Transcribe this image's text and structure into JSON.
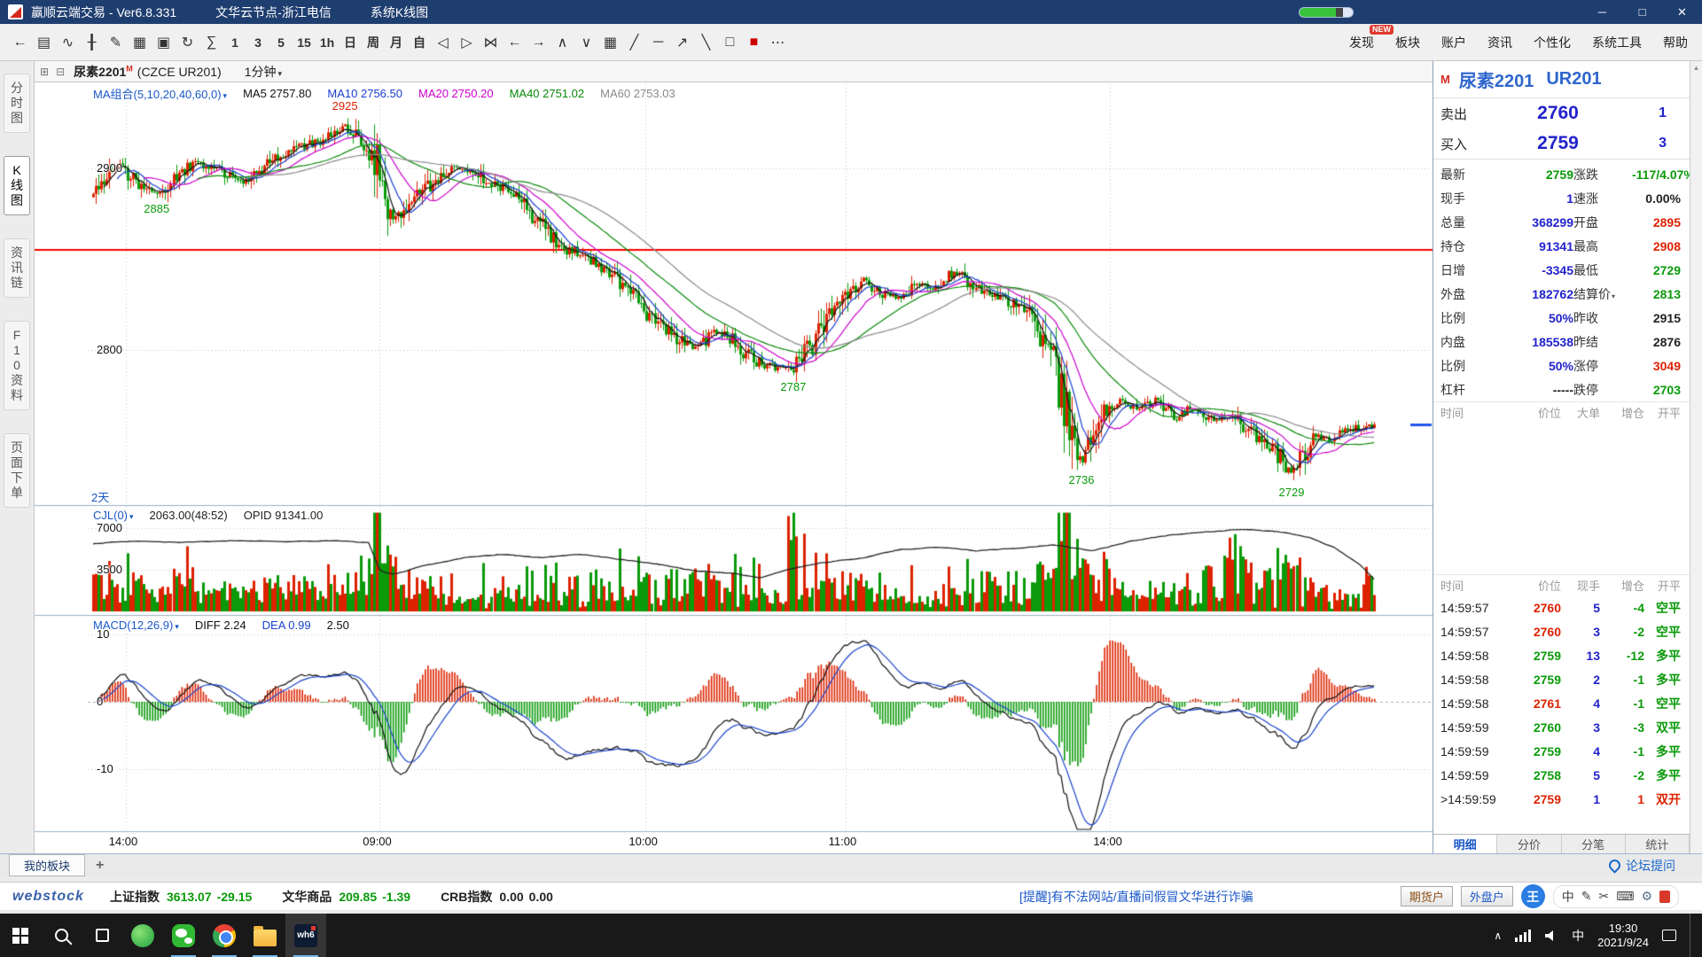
{
  "colors": {
    "up": "#dd2200",
    "down": "#0a9a0a",
    "blue": "#2222cc",
    "black": "#222222",
    "accent": "#2f66cc"
  },
  "ui": {
    "caret": "▾",
    "up_arrow": "▴"
  },
  "titlebar": {
    "app_title": "赢顺云端交易 - Ver6.8.331",
    "node": "文华云节点-浙江电信",
    "window_name": "系统K线图",
    "controls": [
      {
        "name": "minimize-button",
        "glyph": "─"
      },
      {
        "name": "maximize-button",
        "glyph": "□"
      },
      {
        "name": "close-button",
        "glyph": "✕"
      }
    ]
  },
  "toolbar": {
    "left_icons": [
      {
        "name": "back-icon",
        "glyph": "←"
      },
      {
        "name": "report-icon",
        "glyph": "▤"
      },
      {
        "name": "time-chart-icon",
        "glyph": "∿"
      },
      {
        "name": "kline-icon",
        "glyph": "╂"
      },
      {
        "name": "draw-icon",
        "glyph": "✎"
      },
      {
        "name": "chart-type-icon",
        "glyph": "▦"
      },
      {
        "name": "save-icon",
        "glyph": "▣"
      },
      {
        "name": "refresh-icon",
        "glyph": "↻"
      },
      {
        "name": "formula-icon",
        "glyph": "∑"
      }
    ],
    "periods": [
      {
        "name": "period-1min",
        "label": "1"
      },
      {
        "name": "period-3min",
        "label": "3"
      },
      {
        "name": "period-5min",
        "label": "5"
      },
      {
        "name": "period-15min",
        "label": "15"
      },
      {
        "name": "period-1hour",
        "label": "1h"
      },
      {
        "name": "period-day",
        "label": "日"
      },
      {
        "name": "period-week",
        "label": "周"
      },
      {
        "name": "period-month",
        "label": "月"
      },
      {
        "name": "period-custom",
        "label": "自"
      }
    ],
    "mid_icons": [
      {
        "name": "page-left-icon",
        "glyph": "◁"
      },
      {
        "name": "page-right-icon",
        "glyph": "▷"
      },
      {
        "name": "compress-icon",
        "glyph": "⋈"
      },
      {
        "name": "prev-icon",
        "glyph": "←"
      },
      {
        "name": "next-icon",
        "glyph": "→"
      },
      {
        "name": "zoom-in-icon",
        "glyph": "∧"
      },
      {
        "name": "zoom-out-icon",
        "glyph": "∨"
      },
      {
        "name": "grid-icon",
        "glyph": "▦"
      },
      {
        "name": "trendline-icon",
        "glyph": "╱"
      },
      {
        "name": "hline-icon",
        "glyph": "─"
      },
      {
        "name": "ray-icon",
        "glyph": "↗"
      },
      {
        "name": "segment-icon",
        "glyph": "╲"
      },
      {
        "name": "rect-icon",
        "glyph": "□"
      },
      {
        "name": "color-block-icon",
        "glyph": "■",
        "color": "#cc0000"
      },
      {
        "name": "more-icon",
        "glyph": "⋯"
      }
    ],
    "right_menu": [
      {
        "name": "nav-discover",
        "label": "发现",
        "badge": "NEW"
      },
      {
        "name": "nav-sectors",
        "label": "板块"
      },
      {
        "name": "nav-account",
        "label": "账户"
      },
      {
        "name": "nav-news",
        "label": "资讯"
      },
      {
        "name": "nav-personalize",
        "label": "个性化"
      },
      {
        "name": "nav-system-tools",
        "label": "系统工具"
      },
      {
        "name": "nav-help",
        "label": "帮助"
      }
    ]
  },
  "symbolbar": {
    "icons": [
      {
        "name": "layout-left-icon",
        "glyph": "⊞"
      },
      {
        "name": "layout-right-icon",
        "glyph": "⊟"
      }
    ],
    "symbol": "尿素2201",
    "symbol_sup": "M",
    "code": "(CZCE UR201)",
    "period": "1分钟"
  },
  "sidebar": {
    "items": [
      {
        "name": "tab-time-chart",
        "label": "分时图",
        "active": false
      },
      {
        "name": "tab-kline",
        "label": "K线图",
        "active": true
      },
      {
        "name": "tab-news-chain",
        "label": "资讯链",
        "active": false
      },
      {
        "name": "tab-f10",
        "label": "F10资料",
        "active": false
      },
      {
        "name": "tab-page-order",
        "label": "页面下单",
        "active": false
      }
    ]
  },
  "panes": {
    "kline": {
      "selector": "MA组合(5,10,20,40,60,0)",
      "ma_values": [
        {
          "text": "MA5 2757.80",
          "color": "#111111"
        },
        {
          "text": "MA10 2756.50",
          "color": "#1a3fd0"
        },
        {
          "text": "MA20 2750.20",
          "color": "#cc00cc"
        },
        {
          "text": "MA40 2751.02",
          "color": "#0a8a0a"
        },
        {
          "text": "MA60 2753.03",
          "color": "#8a8a8a"
        }
      ],
      "y_labels": [
        {
          "text": "2900",
          "price": 2900
        },
        {
          "text": "2800",
          "price": 2800
        }
      ],
      "range_label": "2天",
      "annotations": [
        {
          "text": "2925",
          "t": 0.197,
          "price": 2929,
          "dir": "above",
          "color": "#dd2200"
        },
        {
          "text": "2885",
          "t": 0.05,
          "price": 2883,
          "dir": "below",
          "color": "#0a9a0a"
        },
        {
          "text": "2787",
          "t": 0.547,
          "price": 2785,
          "dir": "below",
          "color": "#0a9a0a"
        },
        {
          "text": "2736",
          "t": 0.772,
          "price": 2734,
          "dir": "below",
          "color": "#0a9a0a"
        },
        {
          "text": "2729",
          "t": 0.936,
          "price": 2727,
          "dir": "below",
          "color": "#0a9a0a"
        }
      ]
    },
    "volume": {
      "selector": "CJL(0)",
      "value_text": "2063.00(48:52)",
      "opid_text": "OPID 91341.00",
      "y_labels": [
        {
          "text": "7000",
          "v": 7000
        },
        {
          "text": "3500",
          "v": 3500
        }
      ]
    },
    "macd": {
      "selector": "MACD(12,26,9)",
      "diff_text": "DIFF 2.24",
      "dea_text": "DEA 0.99",
      "macd_text": "2.50",
      "y_labels": [
        {
          "text": "10",
          "v": 10
        },
        {
          "text": "0",
          "v": 0
        },
        {
          "text": "-10",
          "v": -10
        }
      ]
    },
    "x_labels": [
      {
        "text": "14:00",
        "t": 0.0254
      },
      {
        "text": "09:00",
        "t": 0.2237
      },
      {
        "text": "10:00",
        "t": 0.4314
      },
      {
        "text": "11:00",
        "t": 0.5873
      },
      {
        "text": "14:00",
        "t": 0.794
      }
    ]
  },
  "chart_data": {
    "type": "candlestick-1min",
    "symbol": "尿素2201 (CZCE UR201)",
    "period": "1分钟",
    "span_label": "2天",
    "price_axis": {
      "min": 2715,
      "max": 2946
    },
    "red_alert_line": 2855,
    "current_price_marker": 2759,
    "price_anchors": [
      [
        0,
        2884
      ],
      [
        0.01,
        2896
      ],
      [
        0.02,
        2903
      ],
      [
        0.035,
        2892
      ],
      [
        0.05,
        2886
      ],
      [
        0.065,
        2896
      ],
      [
        0.08,
        2903
      ],
      [
        0.1,
        2898
      ],
      [
        0.115,
        2892
      ],
      [
        0.13,
        2899
      ],
      [
        0.15,
        2908
      ],
      [
        0.17,
        2913
      ],
      [
        0.185,
        2918
      ],
      [
        0.197,
        2923
      ],
      [
        0.205,
        2917
      ],
      [
        0.218,
        2909
      ],
      [
        0.224,
        2893
      ],
      [
        0.232,
        2869
      ],
      [
        0.245,
        2879
      ],
      [
        0.26,
        2889
      ],
      [
        0.275,
        2898
      ],
      [
        0.29,
        2901
      ],
      [
        0.305,
        2894
      ],
      [
        0.32,
        2889
      ],
      [
        0.335,
        2881
      ],
      [
        0.35,
        2869
      ],
      [
        0.365,
        2858
      ],
      [
        0.38,
        2852
      ],
      [
        0.395,
        2847
      ],
      [
        0.41,
        2839
      ],
      [
        0.425,
        2827
      ],
      [
        0.44,
        2815
      ],
      [
        0.455,
        2807
      ],
      [
        0.47,
        2800
      ],
      [
        0.485,
        2811
      ],
      [
        0.5,
        2805
      ],
      [
        0.515,
        2795
      ],
      [
        0.53,
        2791
      ],
      [
        0.545,
        2789
      ],
      [
        0.552,
        2794
      ],
      [
        0.57,
        2813
      ],
      [
        0.585,
        2827
      ],
      [
        0.6,
        2839
      ],
      [
        0.615,
        2831
      ],
      [
        0.63,
        2829
      ],
      [
        0.645,
        2837
      ],
      [
        0.658,
        2833
      ],
      [
        0.672,
        2843
      ],
      [
        0.685,
        2837
      ],
      [
        0.7,
        2831
      ],
      [
        0.715,
        2827
      ],
      [
        0.73,
        2819
      ],
      [
        0.745,
        2801
      ],
      [
        0.755,
        2779
      ],
      [
        0.765,
        2753
      ],
      [
        0.772,
        2739
      ],
      [
        0.782,
        2756
      ],
      [
        0.792,
        2769
      ],
      [
        0.805,
        2773
      ],
      [
        0.815,
        2767
      ],
      [
        0.83,
        2773
      ],
      [
        0.845,
        2763
      ],
      [
        0.86,
        2769
      ],
      [
        0.875,
        2761
      ],
      [
        0.89,
        2765
      ],
      [
        0.9,
        2757
      ],
      [
        0.915,
        2749
      ],
      [
        0.925,
        2743
      ],
      [
        0.935,
        2732
      ],
      [
        0.945,
        2745
      ],
      [
        0.955,
        2753
      ],
      [
        0.965,
        2751
      ],
      [
        0.975,
        2755
      ],
      [
        0.985,
        2757
      ],
      [
        1,
        2759
      ]
    ],
    "volume_axis_max": 8500,
    "volume_spikes": [
      [
        0,
        2600
      ],
      [
        0.015,
        2100
      ],
      [
        0.06,
        1800
      ],
      [
        0.12,
        1600
      ],
      [
        0.2,
        2000
      ],
      [
        0.224,
        4700
      ],
      [
        0.232,
        4100
      ],
      [
        0.26,
        2200
      ],
      [
        0.43,
        2600
      ],
      [
        0.47,
        3100
      ],
      [
        0.486,
        2600
      ],
      [
        0.546,
        8000
      ],
      [
        0.57,
        2400
      ],
      [
        0.6,
        2300
      ],
      [
        0.7,
        2700
      ],
      [
        0.745,
        3200
      ],
      [
        0.757,
        3700
      ],
      [
        0.772,
        5000
      ],
      [
        0.8,
        2300
      ],
      [
        0.87,
        3400
      ],
      [
        0.887,
        5300
      ],
      [
        0.9,
        4500
      ],
      [
        0.917,
        3000
      ],
      [
        0.936,
        3700
      ],
      [
        0.96,
        2200
      ],
      [
        0.995,
        3100
      ]
    ],
    "oi_anchors": [
      [
        0,
        5700
      ],
      [
        0.03,
        5900
      ],
      [
        0.07,
        5800
      ],
      [
        0.11,
        5950
      ],
      [
        0.15,
        5850
      ],
      [
        0.19,
        5950
      ],
      [
        0.215,
        5800
      ],
      [
        0.224,
        3400
      ],
      [
        0.235,
        3100
      ],
      [
        0.26,
        3900
      ],
      [
        0.29,
        4500
      ],
      [
        0.32,
        4800
      ],
      [
        0.35,
        4500
      ],
      [
        0.38,
        4800
      ],
      [
        0.41,
        4400
      ],
      [
        0.44,
        4000
      ],
      [
        0.47,
        3400
      ],
      [
        0.5,
        3200
      ],
      [
        0.52,
        2800
      ],
      [
        0.545,
        3600
      ],
      [
        0.57,
        4100
      ],
      [
        0.6,
        4500
      ],
      [
        0.63,
        5200
      ],
      [
        0.66,
        5400
      ],
      [
        0.69,
        5100
      ],
      [
        0.72,
        5300
      ],
      [
        0.75,
        5600
      ],
      [
        0.78,
        5100
      ],
      [
        0.81,
        5900
      ],
      [
        0.84,
        6400
      ],
      [
        0.87,
        6700
      ],
      [
        0.9,
        6900
      ],
      [
        0.925,
        6700
      ],
      [
        0.95,
        6200
      ],
      [
        0.97,
        5300
      ],
      [
        0.99,
        3800
      ],
      [
        1,
        2700
      ]
    ],
    "macd_axis": [
      -19,
      12
    ]
  },
  "quote": {
    "badge": "M",
    "name": "尿素2201",
    "code": "UR201",
    "sell_label": "卖出",
    "sell_price": "2760",
    "sell_vol": "1",
    "buy_label": "买入",
    "buy_price": "2759",
    "buy_vol": "3",
    "rows": [
      {
        "l1": "最新",
        "v1": "2759",
        "c1": "down",
        "l2": "涨跌",
        "v2": "-117/4.07%",
        "c2": "down"
      },
      {
        "l1": "现手",
        "v1": "1",
        "c1": "blue",
        "l2": "速涨",
        "v2": "0.00%",
        "c2": "black"
      },
      {
        "l1": "总量",
        "v1": "368299",
        "c1": "blue",
        "l2": "开盘",
        "v2": "2895",
        "c2": "up"
      },
      {
        "l1": "持仓",
        "v1": "91341",
        "c1": "blue",
        "l2": "最高",
        "v2": "2908",
        "c2": "up"
      },
      {
        "l1": "日增",
        "v1": "-3345",
        "c1": "blue",
        "l2": "最低",
        "v2": "2729",
        "c2": "down"
      },
      {
        "l1": "外盘",
        "v1": "182762",
        "c1": "blue",
        "l2": "结算价",
        "v2": "2813",
        "c2": "down",
        "caret2": true
      },
      {
        "l1": "比例",
        "v1": "50%",
        "c1": "blue",
        "l2": "昨收",
        "v2": "2915",
        "c2": "black"
      },
      {
        "l1": "内盘",
        "v1": "185538",
        "c1": "blue",
        "l2": "昨结",
        "v2": "2876",
        "c2": "black"
      },
      {
        "l1": "比例",
        "v1": "50%",
        "c1": "blue",
        "l2": "涨停",
        "v2": "3049",
        "c2": "up"
      },
      {
        "l1": "杠杆",
        "v1": "-----",
        "c1": "black",
        "l2": "跌停",
        "v2": "2703",
        "c2": "down"
      }
    ],
    "bigorder_header": [
      "时间",
      "价位",
      "大单",
      "增仓",
      "开平"
    ],
    "tick_header": [
      "时间",
      "价位",
      "现手",
      "增仓",
      "开平"
    ],
    "ticks": [
      {
        "time": "14:59:57",
        "price": "2760",
        "pc": "up",
        "vol": "5",
        "chg": "-4",
        "cc": "down",
        "dir": "空平",
        "dc": "down"
      },
      {
        "time": "14:59:57",
        "price": "2760",
        "pc": "up",
        "vol": "3",
        "chg": "-2",
        "cc": "down",
        "dir": "空平",
        "dc": "down"
      },
      {
        "time": "14:59:58",
        "price": "2759",
        "pc": "down",
        "vol": "13",
        "chg": "-12",
        "cc": "down",
        "dir": "多平",
        "dc": "down"
      },
      {
        "time": "14:59:58",
        "price": "2759",
        "pc": "down",
        "vol": "2",
        "chg": "-1",
        "cc": "down",
        "dir": "多平",
        "dc": "down"
      },
      {
        "time": "14:59:58",
        "price": "2761",
        "pc": "up",
        "vol": "4",
        "chg": "-1",
        "cc": "down",
        "dir": "空平",
        "dc": "down"
      },
      {
        "time": "14:59:59",
        "price": "2760",
        "pc": "down",
        "vol": "3",
        "chg": "-3",
        "cc": "down",
        "dir": "双平",
        "dc": "down"
      },
      {
        "time": "14:59:59",
        "price": "2759",
        "pc": "down",
        "vol": "4",
        "chg": "-1",
        "cc": "down",
        "dir": "多平",
        "dc": "down"
      },
      {
        "time": "14:59:59",
        "price": "2758",
        "pc": "down",
        "vol": "5",
        "chg": "-2",
        "cc": "down",
        "dir": "多平",
        "dc": "down"
      },
      {
        "time": "14:59:59",
        "prefix": ">",
        "price": "2759",
        "pc": "up",
        "vol": "1",
        "chg": "1",
        "cc": "up",
        "dir": "双开",
        "dc": "up"
      }
    ],
    "tabs": [
      {
        "name": "tab-detail",
        "label": "明细",
        "active": true
      },
      {
        "name": "tab-price-dist",
        "label": "分价",
        "active": false
      },
      {
        "name": "tab-tick",
        "label": "分笔",
        "active": false
      },
      {
        "name": "tab-stats",
        "label": "统计",
        "active": false
      }
    ]
  },
  "boardbar": {
    "tab": "我的板块",
    "add": "+",
    "forum": "论坛提问"
  },
  "statusbar": {
    "logo": "webstock",
    "indices": [
      {
        "label": "上证指数",
        "value": "3613.07",
        "change": "-29.15",
        "color": "down"
      },
      {
        "label": "文华商品",
        "value": "209.85",
        "change": "-1.39",
        "color": "down"
      },
      {
        "label": "CRB指数",
        "value": "0.00",
        "change": "0.00",
        "color": "black"
      }
    ],
    "notice": "[提醒]有不法网站/直播间假冒文华进行诈骗",
    "account_buttons": [
      {
        "name": "futures-account-button",
        "label": "期货户"
      },
      {
        "name": "overseas-account-button",
        "label": "外盘户"
      }
    ],
    "assistant_glyph": "王",
    "ime": {
      "lang": "中",
      "icons": [
        {
          "name": "pen-icon",
          "glyph": "✎"
        },
        {
          "name": "scissors-icon",
          "glyph": "✂"
        },
        {
          "name": "keyboard-icon",
          "glyph": "⌨"
        },
        {
          "name": "settings-icon",
          "glyph": "⚙"
        }
      ]
    }
  },
  "taskbar": {
    "wh6_label": "wh6",
    "tray_lang": "中",
    "time": "19:30",
    "date": "2021/9/24"
  }
}
